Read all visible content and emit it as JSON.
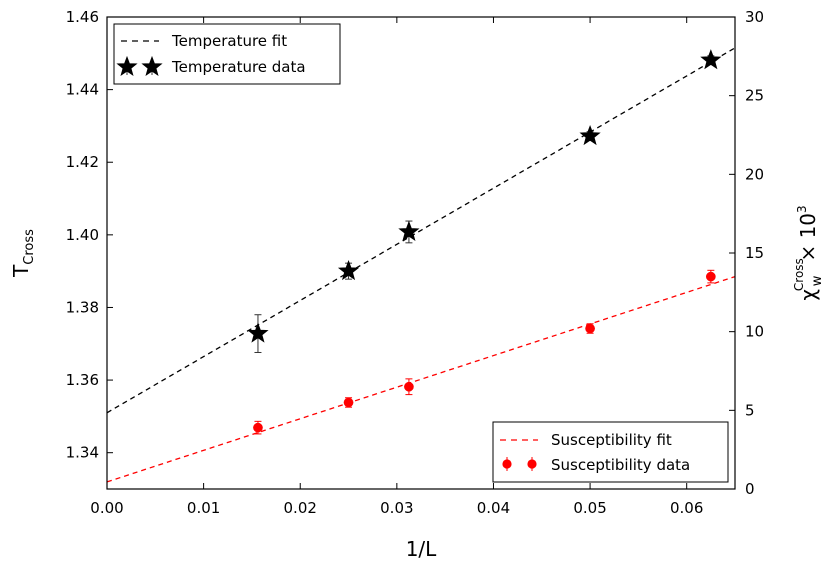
{
  "chart_data": {
    "type": "scatter",
    "xlabel": "1/L",
    "ylabel": "T",
    "ylabel_sub": "Cross",
    "y2label": "χ",
    "y2label_sub": "w",
    "y2label_sup": "Cross",
    "y2label_suffix": "× 10",
    "y2label_suffix_sup": "3",
    "xlim": [
      0.0,
      0.065
    ],
    "ylim": [
      1.33,
      1.46
    ],
    "y2lim": [
      0,
      30
    ],
    "x_ticks": [
      0.0,
      0.01,
      0.02,
      0.03,
      0.04,
      0.05,
      0.06
    ],
    "x_tick_labels": [
      "0.00",
      "0.01",
      "0.02",
      "0.03",
      "0.04",
      "0.05",
      "0.06"
    ],
    "y_ticks": [
      1.34,
      1.36,
      1.38,
      1.4,
      1.42,
      1.44,
      1.46
    ],
    "y_tick_labels": [
      "1.34",
      "1.36",
      "1.38",
      "1.40",
      "1.42",
      "1.44",
      "1.46"
    ],
    "y2_ticks": [
      0,
      5,
      10,
      15,
      20,
      25,
      30
    ],
    "y2_tick_labels": [
      "0",
      "5",
      "10",
      "15",
      "20",
      "25",
      "30"
    ],
    "series": [
      {
        "name": "Temperature data",
        "axis": "left",
        "marker": "star",
        "color": "#000000",
        "x": [
          0.015625,
          0.025,
          0.03125,
          0.05,
          0.0625
        ],
        "y": [
          1.3728,
          1.39,
          1.4008,
          1.4272,
          1.4481
        ],
        "err": [
          0.0052,
          0.0022,
          0.003,
          0.0012,
          0.0012
        ]
      },
      {
        "name": "Temperature fit",
        "axis": "left",
        "style": "dashed",
        "color": "#000000",
        "x": [
          0.0,
          0.065
        ],
        "y": [
          1.351,
          1.4515
        ]
      },
      {
        "name": "Susceptibility data",
        "axis": "right",
        "marker": "circle",
        "color": "#ff0000",
        "x": [
          0.015625,
          0.025,
          0.03125,
          0.05,
          0.0625
        ],
        "y": [
          3.9,
          5.5,
          6.5,
          10.2,
          13.5
        ],
        "err": [
          0.4,
          0.3,
          0.5,
          0.3,
          0.4
        ]
      },
      {
        "name": "Susceptibility fit",
        "axis": "right",
        "style": "dashed",
        "color": "#ff0000",
        "x": [
          0.0,
          0.065
        ],
        "y": [
          0.45,
          13.5
        ]
      }
    ],
    "legends": [
      {
        "position": "top-left",
        "entries": [
          "Temperature fit",
          "Temperature data"
        ]
      },
      {
        "position": "bottom-right",
        "entries": [
          "Susceptibility fit",
          "Susceptibility data"
        ]
      }
    ]
  }
}
